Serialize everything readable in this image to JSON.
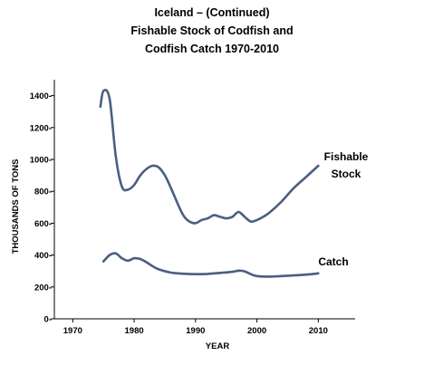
{
  "chart_data": {
    "type": "line",
    "title_lines": [
      "Iceland – (Continued)",
      "Fishable Stock of Codfish and",
      "Codfish Catch 1970-2010"
    ],
    "xlabel": "YEAR",
    "ylabel": "THOUSANDS OF TONS",
    "xlim": [
      1967,
      2016
    ],
    "ylim": [
      0,
      1500
    ],
    "x_ticks": [
      1970,
      1980,
      1990,
      2000,
      2010
    ],
    "y_ticks": [
      0,
      200,
      400,
      600,
      800,
      1000,
      1200,
      1400
    ],
    "grid": false,
    "line_color": "#4a5f80",
    "series": [
      {
        "name": "Fishable Stock",
        "label_lines": [
          "Fishable",
          "Stock"
        ],
        "x": [
          1974.5,
          1975,
          1976,
          1977,
          1978,
          1979,
          1980,
          1981,
          1982,
          1983,
          1984,
          1985,
          1986,
          1987,
          1988,
          1989,
          1990,
          1991,
          1992,
          1993,
          1994,
          1995,
          1996,
          1997,
          1998,
          1999,
          2000,
          2001,
          2002,
          2004,
          2006,
          2008,
          2010
        ],
        "y": [
          1330,
          1430,
          1380,
          1020,
          830,
          810,
          840,
          900,
          940,
          960,
          950,
          900,
          820,
          730,
          650,
          610,
          600,
          620,
          630,
          650,
          640,
          630,
          640,
          670,
          640,
          610,
          620,
          640,
          665,
          735,
          820,
          890,
          960
        ]
      },
      {
        "name": "Catch",
        "label_lines": [
          "Catch"
        ],
        "x": [
          1975,
          1976,
          1977,
          1978,
          1979,
          1980,
          1981,
          1982,
          1983,
          1984,
          1986,
          1988,
          1990,
          1992,
          1994,
          1996,
          1997,
          1998,
          1999,
          2000,
          2002,
          2004,
          2006,
          2008,
          2010
        ],
        "y": [
          360,
          400,
          410,
          380,
          365,
          380,
          375,
          355,
          330,
          310,
          290,
          283,
          280,
          282,
          288,
          295,
          302,
          298,
          280,
          268,
          265,
          268,
          272,
          277,
          285
        ]
      }
    ]
  }
}
